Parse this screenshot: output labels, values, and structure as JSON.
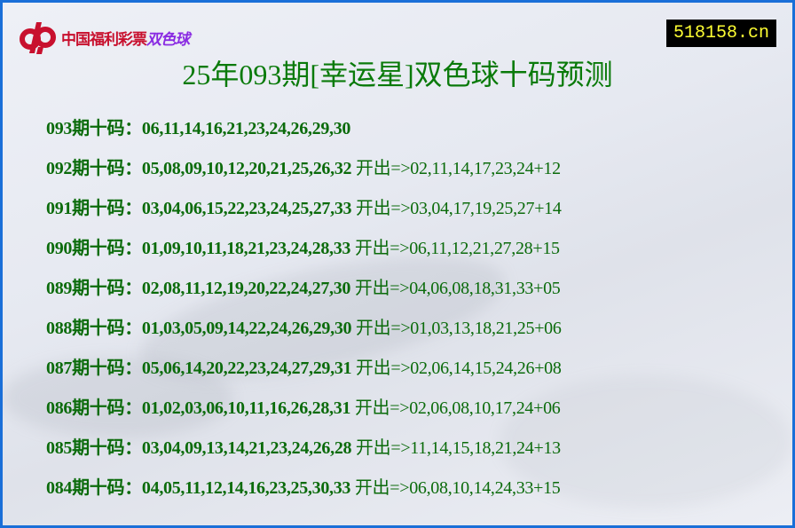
{
  "logo": {
    "text_main": "中国福利彩票",
    "text_game": "双色球"
  },
  "site_badge": "518158.cn",
  "title": "25年093期[幸运星]双色球十码预测",
  "label_suffix": "期十码：",
  "result_prefix": " 开出=>",
  "rows": [
    {
      "issue": "093",
      "picks": "06,11,14,16,21,23,24,26,29,30",
      "result": ""
    },
    {
      "issue": "092",
      "picks": "05,08,09,10,12,20,21,25,26,32",
      "result": "02,11,14,17,23,24+12"
    },
    {
      "issue": "091",
      "picks": "03,04,06,15,22,23,24,25,27,33",
      "result": "03,04,17,19,25,27+14"
    },
    {
      "issue": "090",
      "picks": "01,09,10,11,18,21,23,24,28,33",
      "result": "06,11,12,21,27,28+15"
    },
    {
      "issue": "089",
      "picks": "02,08,11,12,19,20,22,24,27,30",
      "result": "04,06,08,18,31,33+05"
    },
    {
      "issue": "088",
      "picks": "01,03,05,09,14,22,24,26,29,30",
      "result": "01,03,13,18,21,25+06"
    },
    {
      "issue": "087",
      "picks": "05,06,14,20,22,23,24,27,29,31",
      "result": "02,06,14,15,24,26+08"
    },
    {
      "issue": "086",
      "picks": "01,02,03,06,10,11,16,26,28,31",
      "result": "02,06,08,10,17,24+06"
    },
    {
      "issue": "085",
      "picks": "03,04,09,13,14,21,23,24,26,28",
      "result": "11,14,15,18,21,24+13"
    },
    {
      "issue": "084",
      "picks": "04,05,11,12,14,16,23,25,30,33",
      "result": "06,08,10,14,24,33+15"
    }
  ],
  "colors": {
    "text": "#0b6b0b",
    "border": "#1a6fd8",
    "badge_bg": "#000000",
    "badge_text": "#ffff33",
    "logo_red": "#c8102e"
  }
}
